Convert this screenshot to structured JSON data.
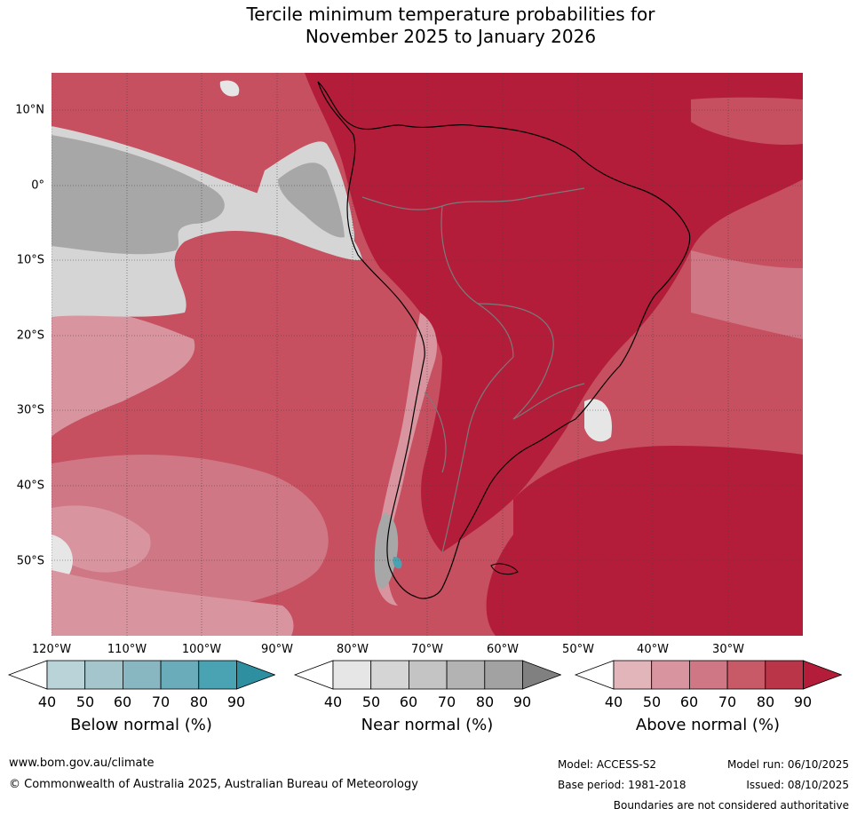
{
  "title": {
    "line1": "Tercile minimum temperature probabilities for",
    "line2": "November 2025 to January 2026"
  },
  "latitude_labels": [
    "10°N",
    "0°",
    "10°S",
    "20°S",
    "30°S",
    "40°S",
    "50°S"
  ],
  "longitude_labels": [
    "120°W",
    "110°W",
    "100°W",
    "90°W",
    "80°W",
    "70°W",
    "60°W",
    "50°W",
    "40°W",
    "30°W"
  ],
  "legends": [
    {
      "label": "Below normal (%)",
      "ticks": [
        "40",
        "50",
        "60",
        "70",
        "80",
        "90"
      ],
      "colors": [
        "#ffffff",
        "#b9d3d9",
        "#a4c5cc",
        "#88b6c1",
        "#6aacb9",
        "#4aa3b3",
        "#2e8fa1"
      ]
    },
    {
      "label": "Near normal (%)",
      "ticks": [
        "40",
        "50",
        "60",
        "70",
        "80",
        "90"
      ],
      "colors": [
        "#ffffff",
        "#e6e6e6",
        "#d5d5d5",
        "#c4c4c4",
        "#b3b3b3",
        "#a2a2a2",
        "#808080"
      ]
    },
    {
      "label": "Above normal (%)",
      "ticks": [
        "40",
        "50",
        "60",
        "70",
        "80",
        "90"
      ],
      "colors": [
        "#ffffff",
        "#e2b5bb",
        "#d9959f",
        "#cf7784",
        "#c85a68",
        "#bb3549",
        "#b31d3a"
      ]
    }
  ],
  "footer": {
    "website": "www.bom.gov.au/climate",
    "copyright": "© Commonwealth of Australia 2025, Australian Bureau of Meteorology",
    "model": "Model: ACCESS-S2",
    "base_period": "Base period: 1981-2018",
    "model_run": "Model run: 06/10/2025",
    "issued": "Issued: 08/10/2025",
    "disclaimer": "Boundaries are not considered authoritative"
  },
  "colors": {
    "above_base": "#c64f60",
    "above_strong": "#b31d3a",
    "above_mid": "#cf7784",
    "above_light": "#d9959f",
    "near_light": "#d5d5d5",
    "near_dark": "#a7a7a7",
    "border": "#7a7a7a",
    "coast": "#000000"
  }
}
